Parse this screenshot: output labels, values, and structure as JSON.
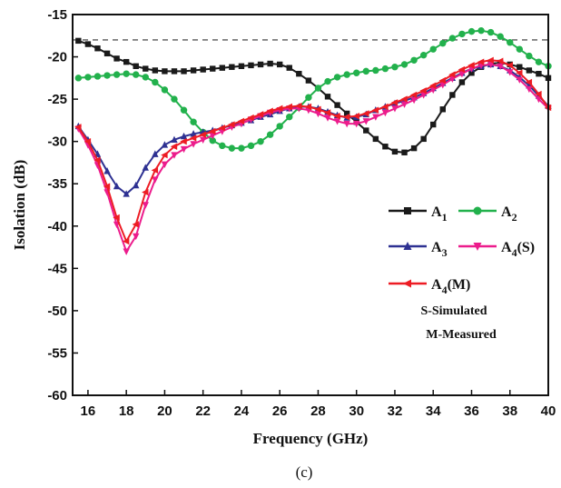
{
  "chart_data": {
    "type": "line",
    "xlabel": "Frequency (GHz)",
    "ylabel": "Isolation (dB)",
    "xlim": [
      15.2,
      40
    ],
    "ylim": [
      -60,
      -15
    ],
    "xticks": [
      16,
      18,
      20,
      22,
      24,
      26,
      28,
      30,
      32,
      34,
      36,
      38,
      40
    ],
    "yticks": [
      -15,
      -20,
      -25,
      -30,
      -35,
      -40,
      -45,
      -50,
      -55,
      -60
    ],
    "grid": false,
    "reference_line": {
      "y": -18,
      "style": "dashed"
    },
    "legend_position": "right-middle",
    "series": [
      {
        "name": "A1",
        "name_main": "A",
        "name_sub": "1",
        "name_suffix": "",
        "color": "#1a1a1a",
        "marker": "square",
        "x": [
          15.5,
          16,
          16.5,
          17,
          17.5,
          18,
          18.5,
          19,
          19.5,
          20,
          20.5,
          21,
          21.5,
          22,
          22.5,
          23,
          23.5,
          24,
          24.5,
          25,
          25.5,
          26,
          26.5,
          27,
          27.5,
          28,
          28.5,
          29,
          29.5,
          30,
          30.5,
          31,
          31.5,
          32,
          32.5,
          33,
          33.5,
          34,
          34.5,
          35,
          35.5,
          36,
          36.5,
          37,
          37.5,
          38,
          38.5,
          39,
          39.5,
          40
        ],
        "y": [
          -18.1,
          -18.5,
          -19,
          -19.6,
          -20.2,
          -20.6,
          -21.1,
          -21.4,
          -21.6,
          -21.7,
          -21.7,
          -21.7,
          -21.6,
          -21.5,
          -21.4,
          -21.3,
          -21.2,
          -21.1,
          -21,
          -20.9,
          -20.8,
          -20.9,
          -21.3,
          -22,
          -22.8,
          -23.7,
          -24.7,
          -25.7,
          -26.7,
          -27.7,
          -28.7,
          -29.7,
          -30.6,
          -31.2,
          -31.3,
          -30.8,
          -29.7,
          -28,
          -26.2,
          -24.5,
          -23,
          -21.9,
          -21.2,
          -20.8,
          -20.7,
          -20.9,
          -21.2,
          -21.6,
          -22,
          -22.5
        ]
      },
      {
        "name": "A2",
        "name_main": "A",
        "name_sub": "2",
        "name_suffix": "",
        "color": "#22b14c",
        "marker": "circle",
        "x": [
          15.5,
          16,
          16.5,
          17,
          17.5,
          18,
          18.5,
          19,
          19.5,
          20,
          20.5,
          21,
          21.5,
          22,
          22.5,
          23,
          23.5,
          24,
          24.5,
          25,
          25.5,
          26,
          26.5,
          27,
          27.5,
          28,
          28.5,
          29,
          29.5,
          30,
          30.5,
          31,
          31.5,
          32,
          32.5,
          33,
          33.5,
          34,
          34.5,
          35,
          35.5,
          36,
          36.5,
          37,
          37.5,
          38,
          38.5,
          39,
          39.5,
          40
        ],
        "y": [
          -22.5,
          -22.4,
          -22.3,
          -22.2,
          -22.1,
          -22,
          -22.1,
          -22.4,
          -23,
          -23.9,
          -25,
          -26.3,
          -27.7,
          -28.9,
          -29.9,
          -30.5,
          -30.8,
          -30.8,
          -30.5,
          -30,
          -29.2,
          -28.2,
          -27.1,
          -26,
          -24.8,
          -23.7,
          -22.9,
          -22.4,
          -22.1,
          -21.9,
          -21.7,
          -21.6,
          -21.4,
          -21.2,
          -20.9,
          -20.4,
          -19.8,
          -19.1,
          -18.4,
          -17.8,
          -17.3,
          -17,
          -16.9,
          -17.1,
          -17.6,
          -18.3,
          -19.1,
          -19.9,
          -20.6,
          -21.1
        ]
      },
      {
        "name": "A3",
        "name_main": "A",
        "name_sub": "3",
        "name_suffix": "",
        "color": "#2e3192",
        "marker": "triangle-up",
        "x": [
          15.5,
          16,
          16.5,
          17,
          17.5,
          18,
          18.5,
          19,
          19.5,
          20,
          20.5,
          21,
          21.5,
          22,
          22.5,
          23,
          23.5,
          24,
          24.5,
          25,
          25.5,
          26,
          26.5,
          27,
          27.5,
          28,
          28.5,
          29,
          29.5,
          30,
          30.5,
          31,
          31.5,
          32,
          32.5,
          33,
          33.5,
          34,
          34.5,
          35,
          35.5,
          36,
          36.5,
          37,
          37.5,
          38,
          38.5,
          39,
          39.5,
          40
        ],
        "y": [
          -28.2,
          -29.8,
          -31.5,
          -33.5,
          -35.3,
          -36.2,
          -35.2,
          -33.1,
          -31.5,
          -30.4,
          -29.8,
          -29.4,
          -29.1,
          -28.9,
          -28.7,
          -28.4,
          -28.1,
          -27.8,
          -27.5,
          -27.1,
          -26.8,
          -26.4,
          -26.1,
          -25.9,
          -25.9,
          -26.1,
          -26.5,
          -26.9,
          -27.2,
          -27.1,
          -26.8,
          -26.3,
          -25.9,
          -25.5,
          -25.2,
          -24.8,
          -24.3,
          -23.7,
          -23.1,
          -22.5,
          -21.9,
          -21.4,
          -21.1,
          -20.9,
          -21.1,
          -21.6,
          -22.4,
          -23.4,
          -24.6,
          -25.8
        ]
      },
      {
        "name": "A4(S)",
        "name_main": "A",
        "name_sub": "4",
        "name_suffix": "(S)",
        "color": "#ec1c8c",
        "marker": "triangle-down",
        "x": [
          15.5,
          16,
          16.5,
          17,
          17.5,
          18,
          18.5,
          19,
          19.5,
          20,
          20.5,
          21,
          21.5,
          22,
          22.5,
          23,
          23.5,
          24,
          24.5,
          25,
          25.5,
          26,
          26.5,
          27,
          27.5,
          28,
          28.5,
          29,
          29.5,
          30,
          30.5,
          31,
          31.5,
          32,
          32.5,
          33,
          33.5,
          34,
          34.5,
          35,
          35.5,
          36,
          36.5,
          37,
          37.5,
          38,
          38.5,
          39,
          39.5,
          40
        ],
        "y": [
          -28.5,
          -30.4,
          -32.8,
          -36,
          -39.8,
          -43,
          -41.2,
          -37.5,
          -34.5,
          -32.7,
          -31.6,
          -30.9,
          -30.3,
          -29.8,
          -29.3,
          -28.8,
          -28.3,
          -27.9,
          -27.4,
          -27,
          -26.6,
          -26.3,
          -26.1,
          -26.1,
          -26.3,
          -26.7,
          -27.2,
          -27.6,
          -27.9,
          -27.9,
          -27.6,
          -27.1,
          -26.6,
          -26.1,
          -25.6,
          -25.1,
          -24.5,
          -23.9,
          -23.3,
          -22.6,
          -22,
          -21.4,
          -21,
          -20.9,
          -21.1,
          -21.8,
          -22.7,
          -23.8,
          -25,
          -26.1
        ]
      },
      {
        "name": "A4(M)",
        "name_main": "A",
        "name_sub": "4",
        "name_suffix": "(M)",
        "color": "#ed1c24",
        "marker": "triangle-left",
        "x": [
          15.5,
          16,
          16.5,
          17,
          17.5,
          18,
          18.5,
          19,
          19.5,
          20,
          20.5,
          21,
          21.5,
          22,
          22.5,
          23,
          23.5,
          24,
          24.5,
          25,
          25.5,
          26,
          26.5,
          27,
          27.5,
          28,
          28.5,
          29,
          29.5,
          30,
          30.5,
          31,
          31.5,
          32,
          32.5,
          33,
          33.5,
          34,
          34.5,
          35,
          35.5,
          36,
          36.5,
          37,
          37.5,
          38,
          38.5,
          39,
          39.5,
          40
        ],
        "y": [
          -28.3,
          -30,
          -32.2,
          -35.3,
          -39,
          -41.8,
          -39.8,
          -36,
          -33.4,
          -31.6,
          -30.6,
          -30,
          -29.6,
          -29.2,
          -28.8,
          -28.4,
          -28,
          -27.6,
          -27.2,
          -26.8,
          -26.4,
          -26.1,
          -25.9,
          -25.8,
          -25.9,
          -26.2,
          -26.6,
          -27,
          -27.1,
          -27,
          -26.7,
          -26.3,
          -25.9,
          -25.4,
          -25,
          -24.5,
          -24,
          -23.4,
          -22.8,
          -22.1,
          -21.5,
          -21,
          -20.6,
          -20.4,
          -20.5,
          -21,
          -21.9,
          -23,
          -24.4,
          -26
        ]
      }
    ],
    "notes": [
      "S-Simulated",
      "M-Measured"
    ],
    "caption": "(c)"
  }
}
